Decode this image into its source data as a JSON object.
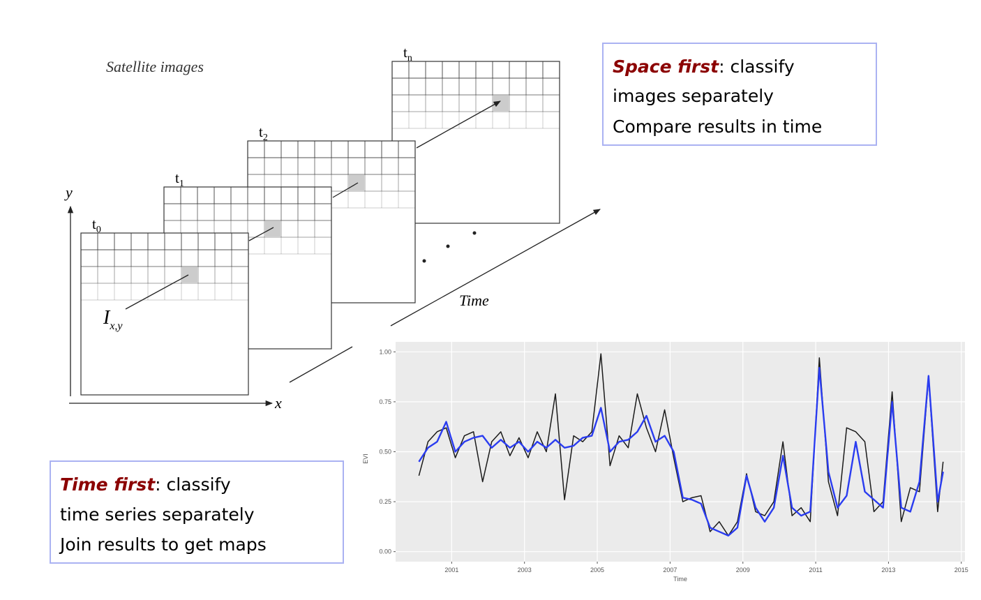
{
  "diagram": {
    "satellite_label": "Satellite images",
    "frames": [
      {
        "label": "t",
        "sub": "0"
      },
      {
        "label": "t",
        "sub": "1"
      },
      {
        "label": "t",
        "sub": "2"
      },
      {
        "label": "t",
        "sub": "n"
      }
    ],
    "y_axis": "y",
    "x_axis": "x",
    "pixel_label": {
      "main": "I",
      "sub": "x,y"
    },
    "time_label": "Time",
    "space_box": {
      "emphasis": "Space first",
      "rest": ": classify",
      "lines": [
        "images separately",
        "Compare results in time"
      ]
    },
    "time_box": {
      "emphasis": "Time first",
      "rest": ": classify",
      "lines": [
        "time series separately",
        "Join results to get maps"
      ]
    }
  },
  "chart_data": {
    "type": "line",
    "x_label": "Time",
    "y_label": "EVI",
    "x": [
      2000.1,
      2000.35,
      2000.6,
      2000.85,
      2001.1,
      2001.35,
      2001.6,
      2001.85,
      2002.1,
      2002.35,
      2002.6,
      2002.85,
      2003.1,
      2003.35,
      2003.6,
      2003.85,
      2004.1,
      2004.35,
      2004.6,
      2004.85,
      2005.1,
      2005.35,
      2005.6,
      2005.85,
      2006.1,
      2006.35,
      2006.6,
      2006.85,
      2007.1,
      2007.35,
      2007.6,
      2007.85,
      2008.1,
      2008.35,
      2008.6,
      2008.85,
      2009.1,
      2009.35,
      2009.6,
      2009.85,
      2010.1,
      2010.35,
      2010.6,
      2010.85,
      2011.1,
      2011.35,
      2011.6,
      2011.85,
      2012.1,
      2012.35,
      2012.6,
      2012.85,
      2013.1,
      2013.35,
      2013.6,
      2013.85,
      2014.1,
      2014.35,
      2014.5
    ],
    "series": [
      {
        "color": "#1a1a1a",
        "values": [
          0.38,
          0.55,
          0.6,
          0.62,
          0.47,
          0.58,
          0.6,
          0.35,
          0.55,
          0.6,
          0.48,
          0.57,
          0.47,
          0.6,
          0.5,
          0.79,
          0.26,
          0.58,
          0.55,
          0.6,
          0.99,
          0.43,
          0.58,
          0.52,
          0.79,
          0.62,
          0.5,
          0.71,
          0.47,
          0.25,
          0.27,
          0.28,
          0.1,
          0.15,
          0.08,
          0.15,
          0.39,
          0.2,
          0.18,
          0.25,
          0.55,
          0.18,
          0.22,
          0.15,
          0.97,
          0.35,
          0.18,
          0.62,
          0.6,
          0.55,
          0.2,
          0.25,
          0.8,
          0.15,
          0.32,
          0.3,
          0.87,
          0.2,
          0.45
        ]
      },
      {
        "color": "#2a3cf0",
        "values": [
          0.45,
          0.52,
          0.55,
          0.65,
          0.5,
          0.55,
          0.57,
          0.58,
          0.52,
          0.56,
          0.52,
          0.55,
          0.5,
          0.55,
          0.52,
          0.56,
          0.52,
          0.53,
          0.57,
          0.58,
          0.72,
          0.5,
          0.55,
          0.56,
          0.6,
          0.68,
          0.55,
          0.58,
          0.5,
          0.27,
          0.26,
          0.24,
          0.12,
          0.1,
          0.08,
          0.12,
          0.38,
          0.22,
          0.15,
          0.22,
          0.48,
          0.22,
          0.18,
          0.2,
          0.92,
          0.4,
          0.22,
          0.28,
          0.55,
          0.3,
          0.26,
          0.22,
          0.75,
          0.22,
          0.2,
          0.35,
          0.88,
          0.25,
          0.4
        ]
      }
    ],
    "xlim": [
      1999.46,
      2015.1
    ],
    "ylim": [
      -0.05,
      1.05
    ],
    "xticks": [
      2001,
      2003,
      2005,
      2007,
      2009,
      2011,
      2013,
      2015
    ],
    "yticks": [
      {
        "value": 0,
        "label": "0.00"
      },
      {
        "value": 0.25,
        "label": "0.25"
      },
      {
        "value": 0.5,
        "label": "0.50"
      },
      {
        "value": 0.75,
        "label": "0.75"
      },
      {
        "value": 1,
        "label": "1.00"
      }
    ],
    "grid": true,
    "background": "#ebebeb"
  }
}
